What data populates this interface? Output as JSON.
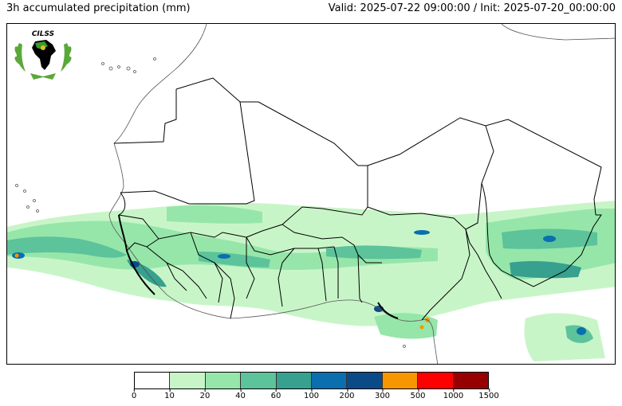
{
  "header": {
    "title": "3h accumulated precipitation (mm)",
    "valid_info": "Valid: 2025-07-22 09:00:00 / Init: 2025-07-20_00:00:00"
  },
  "logo": {
    "text": "CILSS",
    "icon": "cilss-logo-icon"
  },
  "legend": {
    "colors": [
      "#ffffff",
      "#c8f5c8",
      "#96e6aa",
      "#5cc39b",
      "#37a08f",
      "#0a6eaf",
      "#0a4b87",
      "#f79600",
      "#ff0000",
      "#960000"
    ],
    "ticks": [
      "0",
      "10",
      "20",
      "40",
      "60",
      "100",
      "200",
      "300",
      "500",
      "1000",
      "1500"
    ]
  }
}
